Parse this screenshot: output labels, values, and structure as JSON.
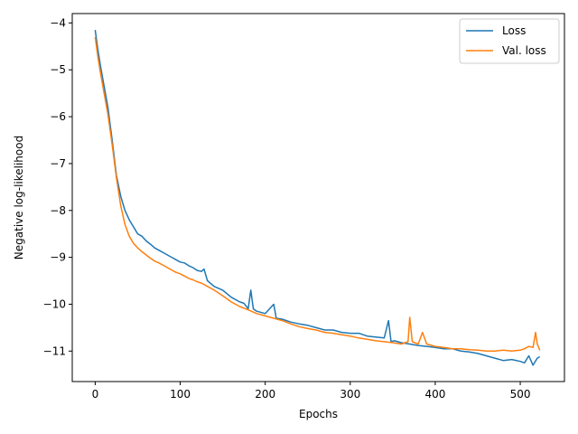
{
  "chart_data": {
    "type": "line",
    "title": "",
    "xlabel": "Epochs",
    "ylabel": "Negative log-likelihood",
    "xlim": [
      -27,
      552
    ],
    "ylim": [
      -11.65,
      -3.8
    ],
    "xticks": [
      0,
      100,
      200,
      300,
      400,
      500
    ],
    "xtick_labels": [
      "0",
      "100",
      "200",
      "300",
      "400",
      "500"
    ],
    "yticks": [
      -11,
      -10,
      -9,
      -8,
      -7,
      -6,
      -5,
      -4
    ],
    "ytick_labels": [
      "−11",
      "−10",
      "−9",
      "−8",
      "−7",
      "−6",
      "−5",
      "−4"
    ],
    "grid": false,
    "legend_position": "top-right",
    "series": [
      {
        "name": "Loss",
        "color": "#1f77b4",
        "x": [
          0,
          3,
          6,
          10,
          15,
          20,
          25,
          30,
          35,
          40,
          45,
          50,
          55,
          60,
          65,
          70,
          75,
          80,
          85,
          90,
          95,
          100,
          105,
          110,
          115,
          120,
          125,
          128,
          132,
          140,
          150,
          160,
          170,
          175,
          180,
          183,
          186,
          190,
          200,
          205,
          210,
          213,
          220,
          230,
          240,
          250,
          260,
          270,
          280,
          290,
          300,
          310,
          320,
          330,
          340,
          345,
          348,
          352,
          360,
          370,
          380,
          390,
          400,
          410,
          420,
          430,
          440,
          450,
          460,
          470,
          480,
          490,
          500,
          505,
          510,
          515,
          520,
          523
        ],
        "values": [
          -4.15,
          -4.55,
          -4.9,
          -5.3,
          -5.8,
          -6.5,
          -7.25,
          -7.7,
          -8.0,
          -8.2,
          -8.35,
          -8.5,
          -8.55,
          -8.65,
          -8.72,
          -8.8,
          -8.85,
          -8.9,
          -8.95,
          -9.0,
          -9.05,
          -9.1,
          -9.12,
          -9.18,
          -9.22,
          -9.28,
          -9.3,
          -9.25,
          -9.5,
          -9.62,
          -9.7,
          -9.85,
          -9.95,
          -9.98,
          -10.1,
          -9.7,
          -10.1,
          -10.15,
          -10.2,
          -10.1,
          -10.0,
          -10.3,
          -10.32,
          -10.38,
          -10.42,
          -10.45,
          -10.5,
          -10.55,
          -10.55,
          -10.6,
          -10.62,
          -10.62,
          -10.68,
          -10.7,
          -10.72,
          -10.35,
          -10.8,
          -10.78,
          -10.82,
          -10.85,
          -10.88,
          -10.9,
          -10.92,
          -10.95,
          -10.95,
          -11.0,
          -11.02,
          -11.05,
          -11.1,
          -11.15,
          -11.2,
          -11.18,
          -11.22,
          -11.25,
          -11.1,
          -11.3,
          -11.15,
          -11.12
        ]
      },
      {
        "name": "Val. loss",
        "color": "#ff7f0e",
        "x": [
          0,
          3,
          6,
          10,
          15,
          20,
          25,
          30,
          35,
          40,
          45,
          50,
          55,
          60,
          65,
          70,
          75,
          80,
          85,
          90,
          95,
          100,
          105,
          110,
          115,
          120,
          125,
          130,
          140,
          150,
          160,
          170,
          180,
          190,
          200,
          210,
          220,
          230,
          240,
          250,
          260,
          270,
          280,
          290,
          300,
          310,
          320,
          330,
          340,
          350,
          360,
          368,
          370,
          373,
          380,
          385,
          390,
          400,
          410,
          420,
          430,
          440,
          450,
          460,
          470,
          480,
          490,
          500,
          505,
          510,
          515,
          518,
          520,
          523
        ],
        "values": [
          -4.3,
          -4.7,
          -5.05,
          -5.45,
          -5.95,
          -6.6,
          -7.3,
          -7.9,
          -8.3,
          -8.55,
          -8.7,
          -8.8,
          -8.88,
          -8.95,
          -9.02,
          -9.08,
          -9.12,
          -9.17,
          -9.22,
          -9.27,
          -9.32,
          -9.35,
          -9.4,
          -9.45,
          -9.48,
          -9.52,
          -9.55,
          -9.6,
          -9.7,
          -9.82,
          -9.95,
          -10.05,
          -10.12,
          -10.2,
          -10.25,
          -10.3,
          -10.35,
          -10.42,
          -10.48,
          -10.52,
          -10.55,
          -10.6,
          -10.62,
          -10.65,
          -10.68,
          -10.72,
          -10.75,
          -10.78,
          -10.8,
          -10.82,
          -10.85,
          -10.8,
          -10.28,
          -10.8,
          -10.85,
          -10.6,
          -10.85,
          -10.9,
          -10.92,
          -10.95,
          -10.95,
          -10.97,
          -10.98,
          -11.0,
          -11.0,
          -10.98,
          -11.0,
          -10.98,
          -10.95,
          -10.9,
          -10.92,
          -10.6,
          -10.85,
          -10.98
        ]
      }
    ]
  }
}
